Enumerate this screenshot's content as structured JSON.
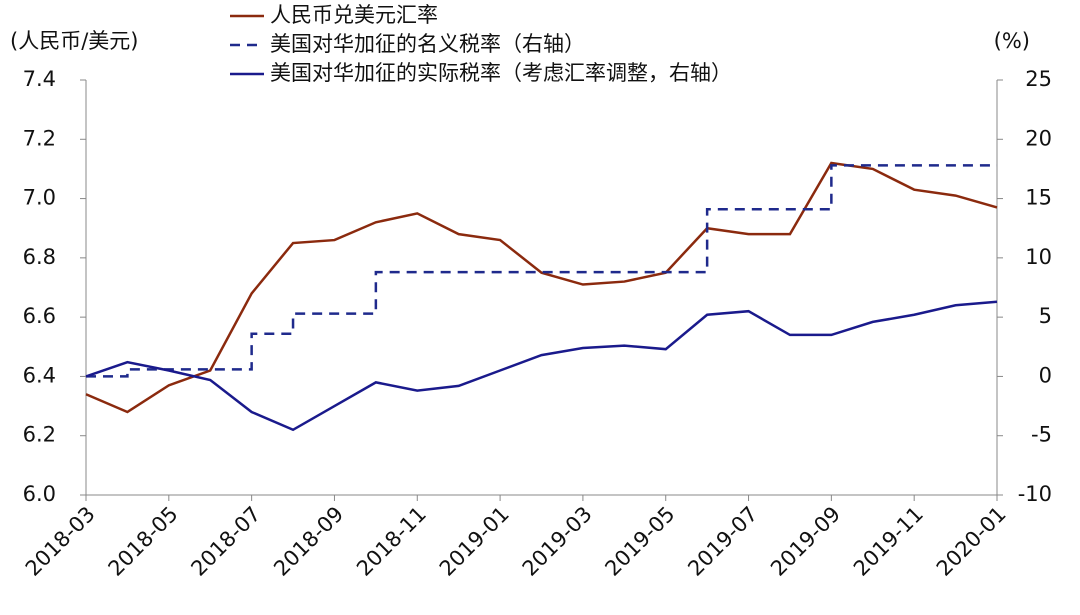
{
  "chart_data": {
    "type": "line",
    "y_label": "(人民币/美元)",
    "y2_label": "(%)",
    "x": [
      "2018-03",
      "2018-04",
      "2018-05",
      "2018-06",
      "2018-07",
      "2018-08",
      "2018-09",
      "2018-10",
      "2018-11",
      "2018-12",
      "2019-01",
      "2019-02",
      "2019-03",
      "2019-04",
      "2019-05",
      "2019-06",
      "2019-07",
      "2019-08",
      "2019-09",
      "2019-10",
      "2019-11",
      "2019-12",
      "2020-01"
    ],
    "xticks": [
      "2018-03",
      "2018-05",
      "2018-07",
      "2018-09",
      "2018-11",
      "2019-01",
      "2019-03",
      "2019-05",
      "2019-07",
      "2019-09",
      "2019-11",
      "2020-01"
    ],
    "series": [
      {
        "name": "人民币兑美元汇率",
        "color": "#8b2a0e",
        "axis": "y",
        "values": [
          6.34,
          6.28,
          6.37,
          6.42,
          6.68,
          6.85,
          6.86,
          6.92,
          6.95,
          6.88,
          6.86,
          6.75,
          6.71,
          6.72,
          6.75,
          6.9,
          6.88,
          6.88,
          7.12,
          7.1,
          7.03,
          7.01,
          6.97
        ]
      },
      {
        "name": "美国对华加征的名义税率（右轴）",
        "color": "#1f2a8c",
        "axis": "y2",
        "dashed": true,
        "step": "post",
        "values": [
          0,
          0.6,
          0.6,
          0.6,
          3.6,
          5.3,
          5.3,
          8.8,
          8.8,
          8.8,
          8.8,
          8.8,
          8.8,
          8.8,
          8.8,
          14.1,
          14.1,
          14.1,
          17.8,
          17.8,
          17.8,
          17.8,
          17.8
        ]
      },
      {
        "name": "美国对华加征的实际税率（考虑汇率调整，右轴）",
        "color": "#1a1a8c",
        "axis": "y2",
        "values": [
          0,
          1.2,
          0.5,
          -0.3,
          -3,
          -4.5,
          -2.5,
          -0.5,
          -1.2,
          -0.8,
          0.5,
          1.8,
          2.4,
          2.6,
          2.3,
          5.2,
          5.5,
          3.5,
          3.5,
          4.6,
          5.2,
          6.0,
          6.3
        ]
      }
    ],
    "ylim": [
      6.0,
      7.4
    ],
    "yticks": [
      {
        "value": 6.0,
        "label": "6.0"
      },
      6.2,
      6.4,
      6.6,
      6.8,
      {
        "value": 7.0,
        "label": "7.0"
      },
      7.2,
      7.4
    ],
    "y2lim": [
      -10,
      25
    ],
    "y2ticks": [
      -10,
      -5,
      0,
      5,
      10,
      15,
      20,
      25
    ]
  }
}
